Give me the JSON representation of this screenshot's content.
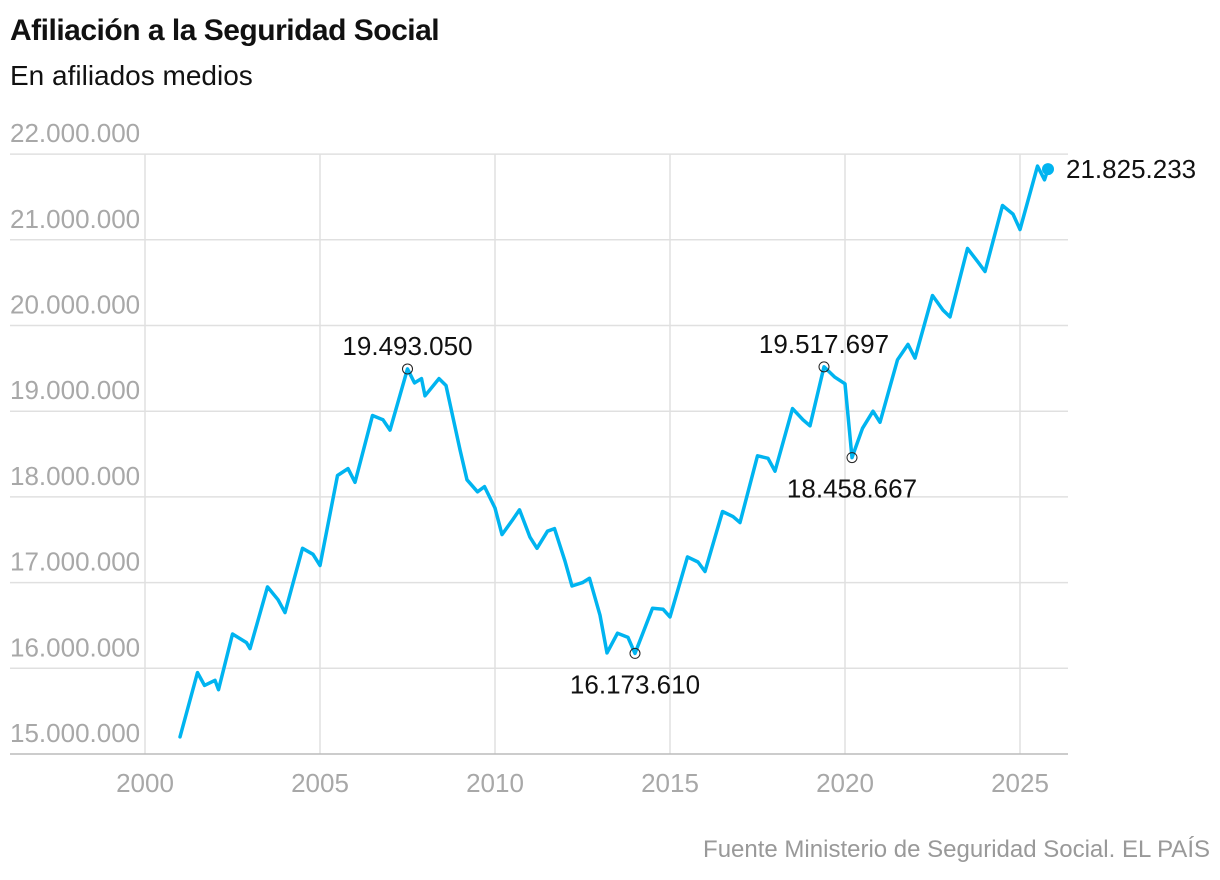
{
  "title": "Afiliación a la Seguridad Social",
  "subtitle": "En afiliados medios",
  "source": "Fuente Ministerio de Seguridad Social. EL PAÍS",
  "colors": {
    "line": "#00b4f0",
    "grid": "#e0e0e0",
    "tick": "#a8a8a8",
    "text": "#111111"
  },
  "chart_data": {
    "type": "line",
    "title": "Afiliación a la Seguridad Social",
    "subtitle": "En afiliados medios",
    "xlabel": "",
    "ylabel": "",
    "xlim": [
      2000,
      2026.3
    ],
    "ylim": [
      15000000,
      22000000
    ],
    "grid": true,
    "x_ticks": [
      2000,
      2005,
      2010,
      2015,
      2020,
      2025
    ],
    "x_tick_labels": [
      "2000",
      "2005",
      "2010",
      "2015",
      "2020",
      "2025"
    ],
    "y_ticks": [
      15000000,
      16000000,
      17000000,
      18000000,
      19000000,
      20000000,
      21000000,
      22000000
    ],
    "y_tick_labels": [
      "15.000.000",
      "16.000.000",
      "17.000.000",
      "18.000.000",
      "19.000.000",
      "20.000.000",
      "21.000.000",
      "22.000.000"
    ],
    "series": [
      {
        "name": "Afiliados medios",
        "x": [
          2001.0,
          2001.5,
          2001.7,
          2002.0,
          2002.1,
          2002.5,
          2002.9,
          2003.0,
          2003.5,
          2003.8,
          2004.0,
          2004.5,
          2004.8,
          2005.0,
          2005.5,
          2005.8,
          2006.0,
          2006.5,
          2006.8,
          2007.0,
          2007.5,
          2007.7,
          2007.9,
          2008.0,
          2008.4,
          2008.6,
          2009.0,
          2009.2,
          2009.5,
          2009.7,
          2010.0,
          2010.2,
          2010.5,
          2010.7,
          2011.0,
          2011.2,
          2011.5,
          2011.7,
          2012.0,
          2012.2,
          2012.5,
          2012.7,
          2013.0,
          2013.2,
          2013.5,
          2013.8,
          2014.0,
          2014.5,
          2014.8,
          2015.0,
          2015.5,
          2015.8,
          2016.0,
          2016.5,
          2016.8,
          2017.0,
          2017.5,
          2017.8,
          2018.0,
          2018.5,
          2018.8,
          2019.0,
          2019.4,
          2019.7,
          2020.0,
          2020.2,
          2020.5,
          2020.8,
          2021.0,
          2021.5,
          2021.8,
          2022.0,
          2022.5,
          2022.8,
          2023.0,
          2023.5,
          2023.8,
          2024.0,
          2024.5,
          2024.8,
          2025.0,
          2025.5,
          2025.7,
          2025.8
        ],
        "values": [
          15200000,
          15950000,
          15800000,
          15860000,
          15750000,
          16400000,
          16300000,
          16230000,
          16950000,
          16800000,
          16650000,
          17400000,
          17330000,
          17200000,
          18250000,
          18330000,
          18170000,
          18950000,
          18900000,
          18780000,
          19493050,
          19330000,
          19380000,
          19180000,
          19380000,
          19300000,
          18550000,
          18200000,
          18060000,
          18120000,
          17870000,
          17560000,
          17730000,
          17850000,
          17530000,
          17400000,
          17600000,
          17630000,
          17250000,
          16960000,
          17000000,
          17050000,
          16620000,
          16180000,
          16410000,
          16360000,
          16173610,
          16700000,
          16690000,
          16600000,
          17300000,
          17240000,
          17130000,
          17830000,
          17770000,
          17700000,
          18480000,
          18450000,
          18300000,
          19030000,
          18900000,
          18830000,
          19517697,
          19400000,
          19320000,
          18458667,
          18800000,
          19000000,
          18870000,
          19600000,
          19780000,
          19620000,
          20350000,
          20180000,
          20100000,
          20900000,
          20740000,
          20630000,
          21400000,
          21300000,
          21120000,
          21860000,
          21700000,
          21825233
        ]
      }
    ],
    "annotations": [
      {
        "x": 2007.5,
        "y": 19493050,
        "label": "19.493.050",
        "position": "above"
      },
      {
        "x": 2014.0,
        "y": 16173610,
        "label": "16.173.610",
        "position": "below"
      },
      {
        "x": 2019.4,
        "y": 19517697,
        "label": "19.517.697",
        "position": "above"
      },
      {
        "x": 2020.2,
        "y": 18458667,
        "label": "18.458.667",
        "position": "below"
      },
      {
        "x": 2025.8,
        "y": 21825233,
        "label": "21.825.233",
        "position": "right",
        "last": true
      }
    ]
  }
}
